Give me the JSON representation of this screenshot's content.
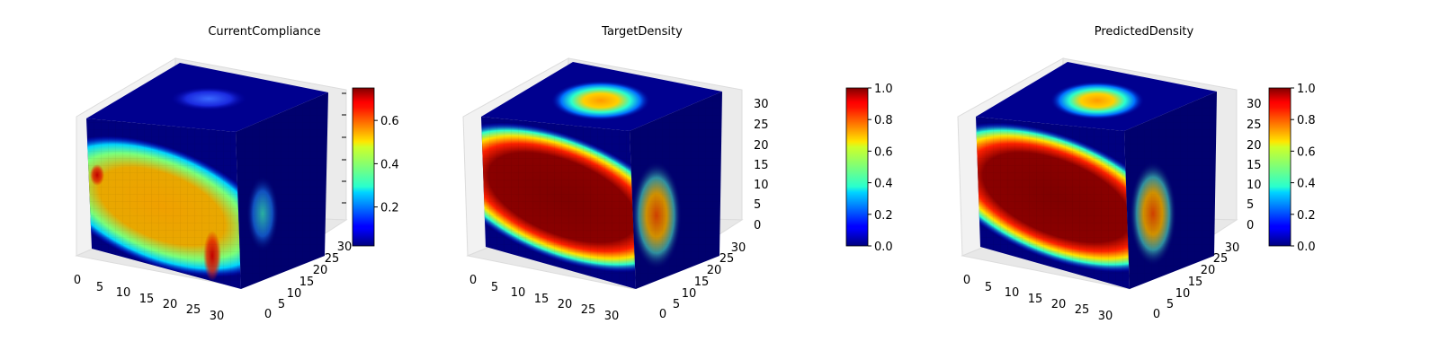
{
  "chart_data": [
    {
      "type": "heatmap",
      "title": "CurrentCompliance",
      "colormap": "jet",
      "x_ticks": [
        "0",
        "5",
        "10",
        "15",
        "20",
        "25",
        "30"
      ],
      "y_ticks": [
        "0",
        "5",
        "10",
        "15",
        "20",
        "25",
        "30"
      ],
      "z_ticks": [],
      "xlim": [
        0,
        32
      ],
      "ylim": [
        0,
        32
      ],
      "zlim": [
        0,
        32
      ],
      "colorbar": {
        "min": 0.02,
        "max": 0.75,
        "ticks": [
          "0.2",
          "0.4",
          "0.6"
        ],
        "tick_values": [
          0.2,
          0.4,
          0.6
        ]
      }
    },
    {
      "type": "heatmap",
      "title": "TargetDensity",
      "colormap": "jet",
      "x_ticks": [
        "0",
        "5",
        "10",
        "15",
        "20",
        "25",
        "30"
      ],
      "y_ticks": [
        "0",
        "5",
        "10",
        "15",
        "20",
        "25",
        "30"
      ],
      "z_ticks": [
        "0",
        "5",
        "10",
        "15",
        "20",
        "25",
        "30"
      ],
      "xlim": [
        0,
        32
      ],
      "ylim": [
        0,
        32
      ],
      "zlim": [
        0,
        32
      ],
      "colorbar": {
        "min": 0.0,
        "max": 1.0,
        "ticks": [
          "0.0",
          "0.2",
          "0.4",
          "0.6",
          "0.8",
          "1.0"
        ],
        "tick_values": [
          0.0,
          0.2,
          0.4,
          0.6,
          0.8,
          1.0
        ]
      }
    },
    {
      "type": "heatmap",
      "title": "PredictedDensity",
      "colormap": "jet",
      "x_ticks": [
        "0",
        "5",
        "10",
        "15",
        "20",
        "25",
        "30"
      ],
      "y_ticks": [
        "0",
        "5",
        "10",
        "15",
        "20",
        "25",
        "30"
      ],
      "z_ticks": [
        "0",
        "5",
        "10",
        "15",
        "20",
        "25",
        "30"
      ],
      "xlim": [
        0,
        32
      ],
      "ylim": [
        0,
        32
      ],
      "zlim": [
        0,
        32
      ],
      "colorbar": {
        "min": 0.0,
        "max": 1.0,
        "ticks": [
          "0.0",
          "0.2",
          "0.4",
          "0.6",
          "0.8",
          "1.0"
        ],
        "tick_values": [
          0.0,
          0.2,
          0.4,
          0.6,
          0.8,
          1.0
        ]
      }
    }
  ]
}
